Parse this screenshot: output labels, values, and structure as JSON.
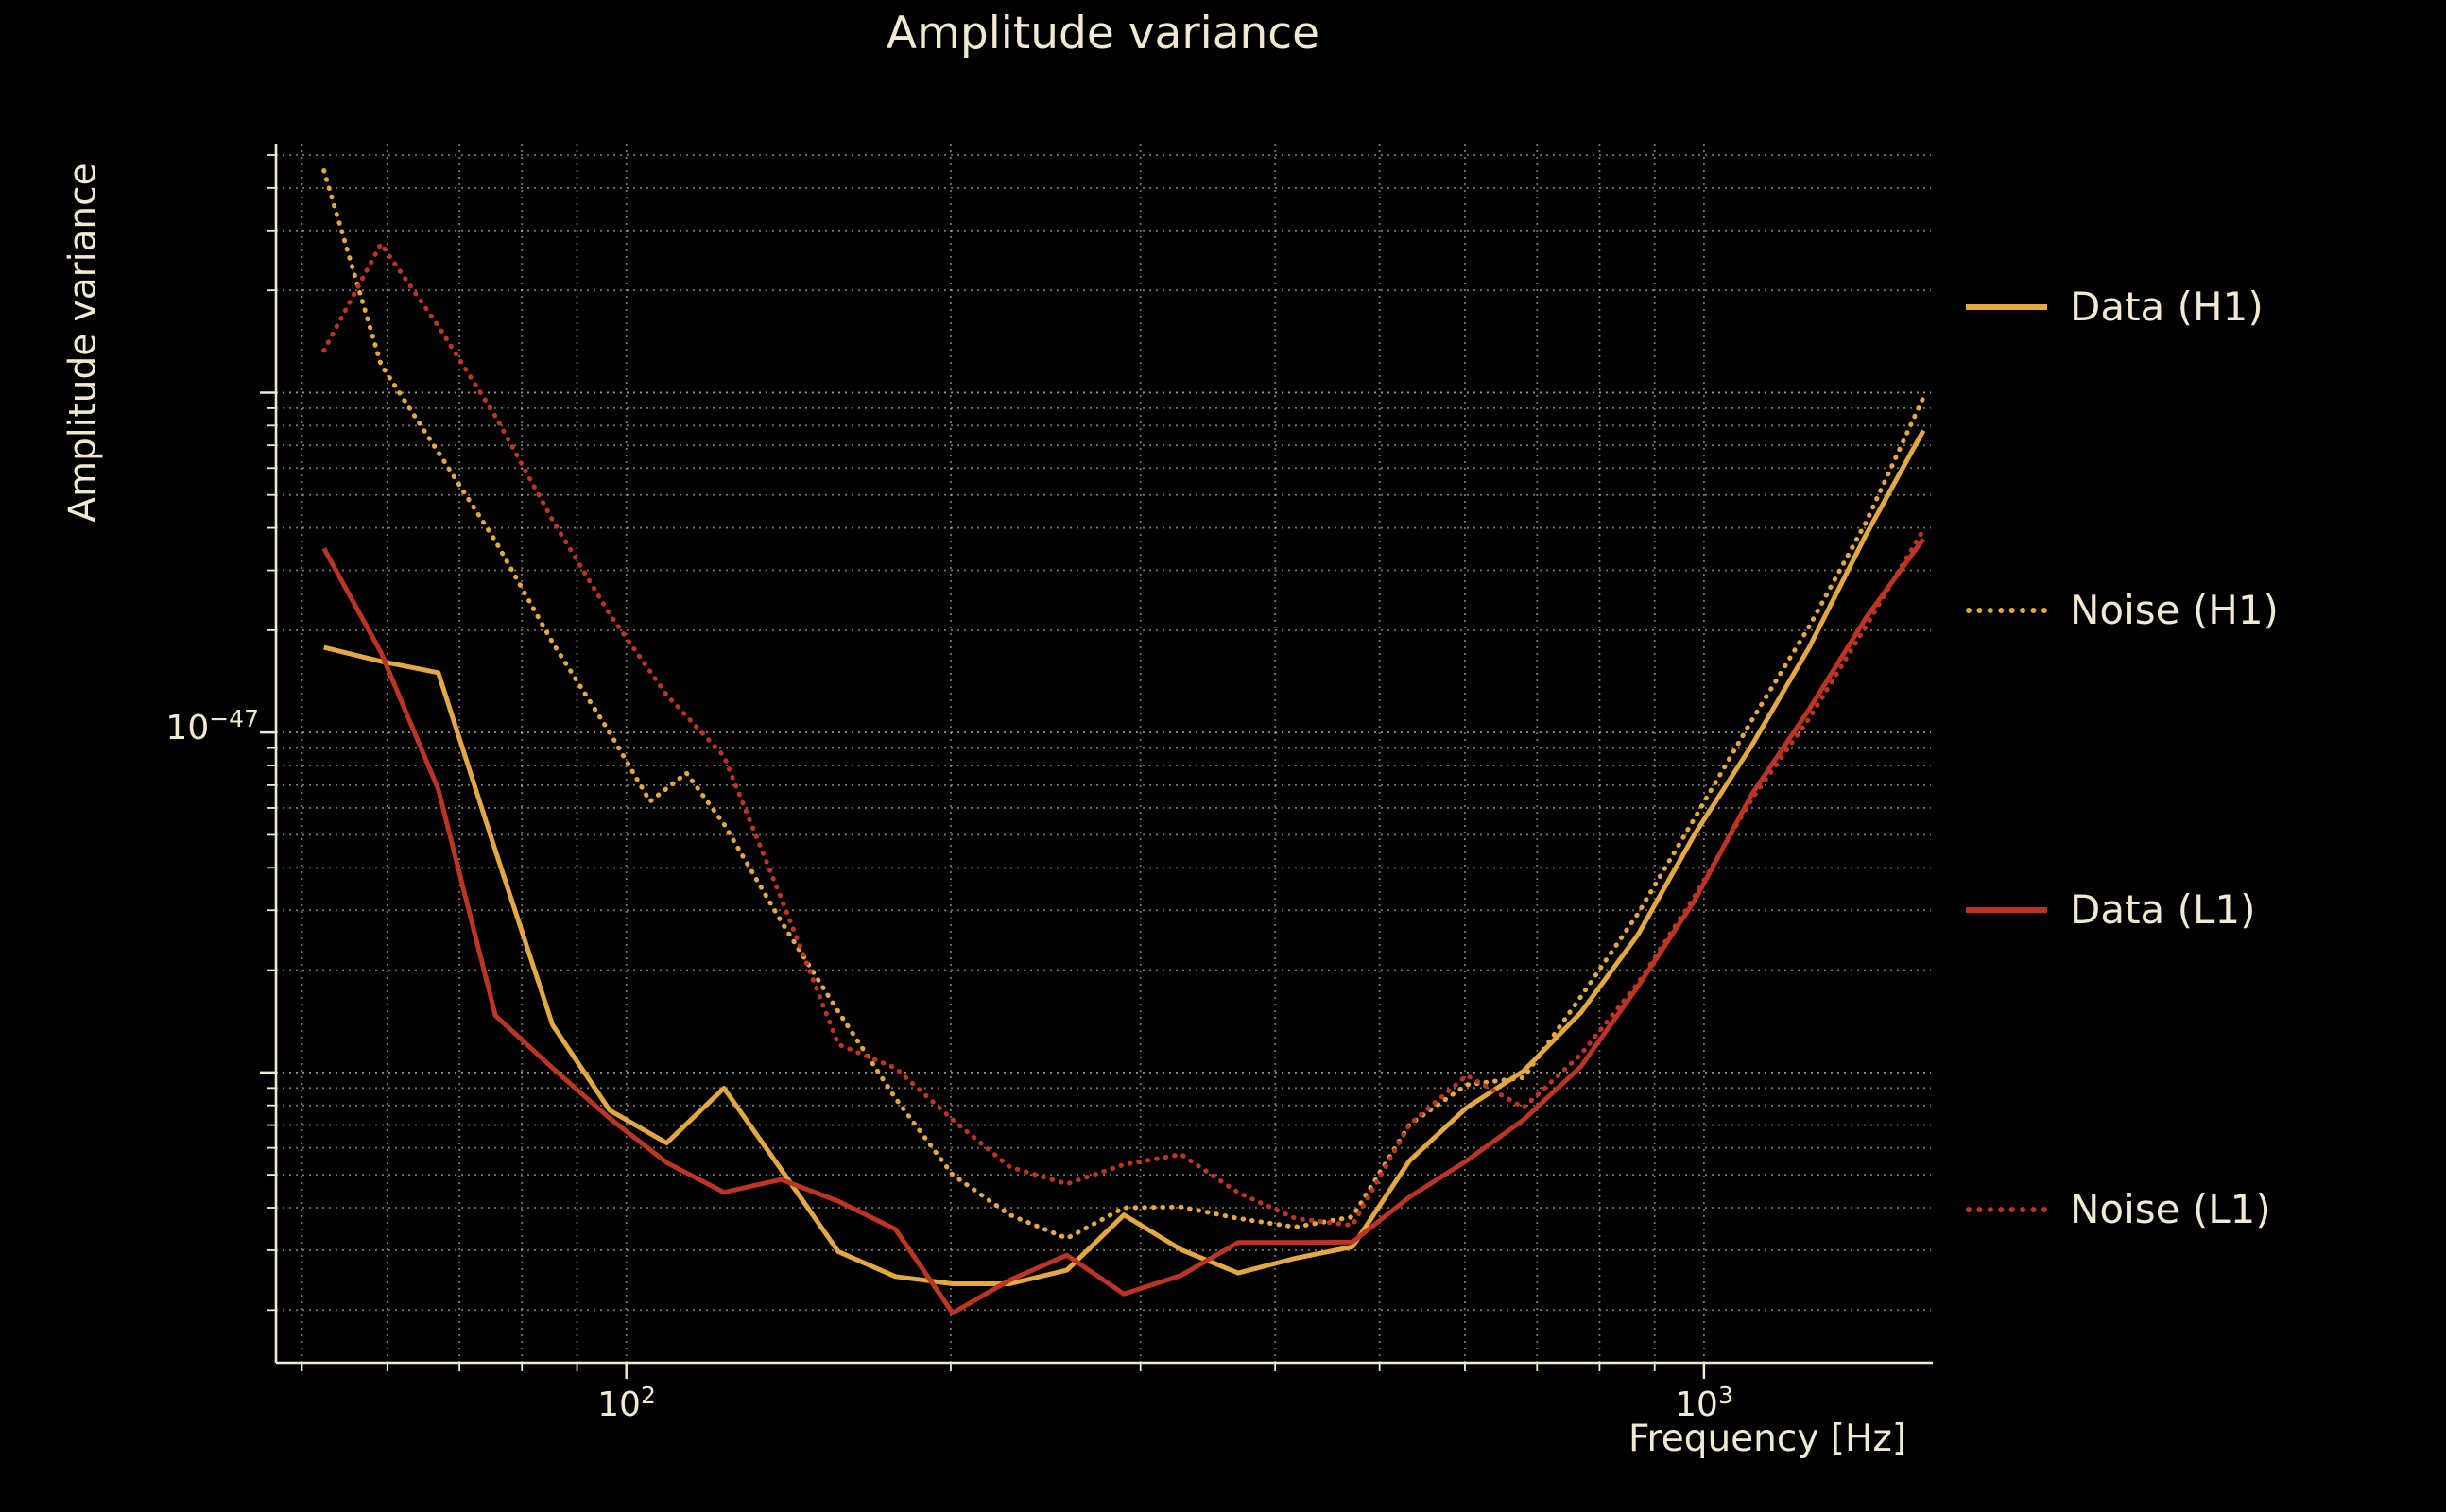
{
  "title": "Amplitude variance",
  "axes": {
    "x_label": "Frequency [Hz]",
    "y_label": "Amplitude variance",
    "y_tick": {
      "base": "10",
      "exp": "−47"
    },
    "x_ticks": [
      {
        "base": "10",
        "exp": "2"
      },
      {
        "base": "10",
        "exp": "3"
      }
    ]
  },
  "legend": {
    "items": [
      {
        "label": "Data (H1)",
        "color": "#e2a844",
        "dash": "solid"
      },
      {
        "label": "Noise (H1)",
        "color": "#e2a844",
        "dash": "dotted"
      },
      {
        "label": "Data (L1)",
        "color": "#bb3524",
        "dash": "solid"
      },
      {
        "label": "Noise (L1)",
        "color": "#bb3524",
        "dash": "dotted"
      }
    ]
  },
  "colors": {
    "background": "#000000",
    "foreground": "#f2e9d2",
    "grid": "#f2e9d2",
    "h1": "#e2a844",
    "l1": "#bb3524"
  },
  "chart_data": {
    "type": "line",
    "title": "Amplitude variance",
    "xlabel": "Frequency [Hz]",
    "ylabel": "Amplitude variance",
    "x_scale": "log",
    "y_scale": "log",
    "xlim": [
      47.3,
      1624
    ],
    "ylim": [
      1.4e-49,
      5.4e-46
    ],
    "grid": "both, dotted",
    "legend_position": "right, outside",
    "value_unit_scale": 1e-47,
    "x_gridlines_hz": [
      50,
      60,
      70,
      80,
      90,
      100,
      200,
      300,
      400,
      500,
      600,
      700,
      800,
      900,
      1000
    ],
    "x_major_ticks_hz": [
      100,
      1000
    ],
    "y_major_ticks": [
      1e-46,
      1e-47,
      1e-48
    ],
    "series": [
      {
        "name": "Data (H1)",
        "color": "#e2a844",
        "dash": "solid",
        "f_hz": [
          52.4,
          59.2,
          66.9,
          75.6,
          85.4,
          96.5,
          109.0,
          123.2,
          139.2,
          157.3,
          177.7,
          200.8,
          226.9,
          256.3,
          289.6,
          327.2,
          369.6,
          417.6,
          471.8,
          533.0,
          602.2,
          680.3,
          768.6,
          868.3,
          981.0,
          1108.3,
          1252.1,
          1414.6,
          1598.2
        ],
        "values_x1e47": [
          1.78,
          1.62,
          1.5,
          0.449,
          0.138,
          0.0774,
          0.062,
          0.0899,
          0.0518,
          0.0297,
          0.0251,
          0.0239,
          0.0239,
          0.0262,
          0.0381,
          0.0301,
          0.0257,
          0.0284,
          0.0307,
          0.055,
          0.0788,
          0.101,
          0.15,
          0.254,
          0.504,
          0.92,
          1.78,
          3.83,
          7.74
        ]
      },
      {
        "name": "Noise (H1)",
        "color": "#e2a844",
        "dash": "dotted",
        "f_hz": [
          52.4,
          59.2,
          66.9,
          75.6,
          85.4,
          96.5,
          105.2,
          113.7,
          123.2,
          139.2,
          157.3,
          177.7,
          200.8,
          226.9,
          256.3,
          289.6,
          327.2,
          369.6,
          417.6,
          471.8,
          533.0,
          602.2,
          680.3,
          768.6,
          868.3,
          981.0,
          1108.3,
          1252.1,
          1414.6,
          1598.2
        ],
        "values_x1e47": [
          45.0,
          12.1,
          6.68,
          3.66,
          1.84,
          1.0,
          0.627,
          0.76,
          0.538,
          0.278,
          0.151,
          0.084,
          0.05,
          0.0381,
          0.0325,
          0.04,
          0.0402,
          0.0372,
          0.0351,
          0.0376,
          0.0703,
          0.092,
          0.0966,
          0.167,
          0.293,
          0.562,
          1.09,
          2.05,
          4.17,
          9.68
        ]
      },
      {
        "name": "Data (L1)",
        "color": "#bb3524",
        "dash": "solid",
        "f_hz": [
          52.4,
          59.2,
          66.9,
          75.6,
          85.4,
          96.5,
          109.0,
          123.2,
          139.2,
          157.3,
          177.7,
          200.8,
          226.9,
          256.3,
          289.6,
          327.2,
          369.6,
          417.6,
          471.8,
          533.0,
          602.2,
          680.3,
          768.6,
          868.3,
          981.0,
          1108.3,
          1252.1,
          1414.6,
          1598.2
        ],
        "values_x1e47": [
          3.48,
          1.72,
          0.681,
          0.147,
          0.103,
          0.0733,
          0.0543,
          0.0444,
          0.0484,
          0.0418,
          0.0346,
          0.0196,
          0.0245,
          0.029,
          0.0223,
          0.0253,
          0.0316,
          0.0316,
          0.0317,
          0.043,
          0.055,
          0.0726,
          0.104,
          0.179,
          0.322,
          0.66,
          1.17,
          2.18,
          3.71
        ]
      },
      {
        "name": "Noise (L1)",
        "color": "#bb3524",
        "dash": "dotted",
        "f_hz": [
          52.4,
          59.2,
          66.9,
          75.6,
          85.4,
          96.5,
          109.0,
          123.2,
          139.2,
          157.3,
          177.7,
          200.8,
          226.9,
          256.3,
          289.6,
          327.2,
          369.6,
          417.6,
          471.8,
          533.0,
          602.2,
          680.3,
          768.6,
          868.3,
          981.0,
          1108.3,
          1252.1,
          1414.6,
          1598.2
        ],
        "values_x1e47": [
          13.3,
          27.4,
          15.7,
          8.52,
          4.22,
          2.23,
          1.29,
          0.852,
          0.326,
          0.121,
          0.103,
          0.0726,
          0.0527,
          0.047,
          0.0536,
          0.0574,
          0.0443,
          0.0372,
          0.0355,
          0.0703,
          0.098,
          0.0788,
          0.113,
          0.183,
          0.331,
          0.639,
          1.1,
          2.06,
          3.95
        ]
      }
    ]
  }
}
